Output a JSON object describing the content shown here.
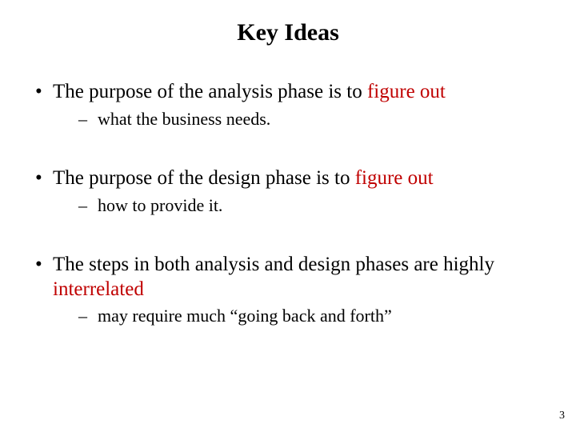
{
  "title": "Key Ideas",
  "bullets": [
    {
      "prefix": "The purpose of the analysis phase is to ",
      "accent": "figure out",
      "sub": "what the business needs."
    },
    {
      "prefix": "The purpose of the design phase is to ",
      "accent": "figure out",
      "sub": "how to provide it."
    },
    {
      "prefix": "The steps in both analysis and design phases are highly ",
      "accent": "interrelated",
      "sub": "may require much “going back and forth”"
    }
  ],
  "page_number": "3",
  "colors": {
    "accent": "#c00000",
    "text": "#000000",
    "background": "#ffffff"
  },
  "fonts": {
    "family": "Times New Roman",
    "title_size_pt": 30,
    "body_size_pt": 25,
    "sub_size_pt": 22
  }
}
